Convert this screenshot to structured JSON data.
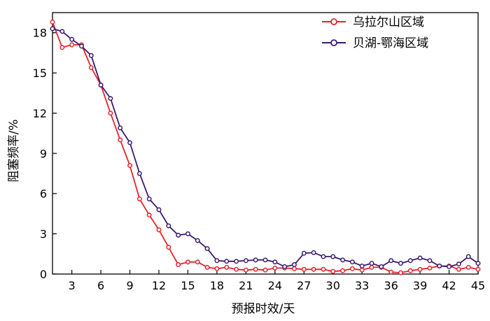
{
  "chart_data": {
    "type": "line",
    "xlabel": "预报时效/天",
    "ylabel": "阻塞频率/%",
    "xlim": [
      1,
      45
    ],
    "ylim": [
      0,
      19.5
    ],
    "xticks": [
      3,
      6,
      9,
      12,
      15,
      18,
      21,
      24,
      27,
      30,
      33,
      36,
      39,
      42,
      45
    ],
    "yticks": [
      0,
      3,
      6,
      9,
      12,
      15,
      18
    ],
    "legend_position": "top-right",
    "x": [
      1,
      2,
      3,
      4,
      5,
      6,
      7,
      8,
      9,
      10,
      11,
      12,
      13,
      14,
      15,
      16,
      17,
      18,
      19,
      20,
      21,
      22,
      23,
      24,
      25,
      26,
      27,
      28,
      29,
      30,
      31,
      32,
      33,
      34,
      35,
      36,
      37,
      38,
      39,
      40,
      41,
      42,
      43,
      44,
      45
    ],
    "series": [
      {
        "name": "乌拉尔山区域",
        "color": "#e8202a",
        "values": [
          18.8,
          16.9,
          17.1,
          17.1,
          15.4,
          14.1,
          12.0,
          10.0,
          8.1,
          5.6,
          4.4,
          3.3,
          2.0,
          0.7,
          0.9,
          0.9,
          0.5,
          0.4,
          0.5,
          0.35,
          0.3,
          0.35,
          0.3,
          0.45,
          0.45,
          0.4,
          0.35,
          0.35,
          0.35,
          0.2,
          0.25,
          0.4,
          0.3,
          0.5,
          0.5,
          0.15,
          0.1,
          0.25,
          0.35,
          0.45,
          0.6,
          0.6,
          0.35,
          0.5,
          0.35
        ]
      },
      {
        "name": "贝湖-鄂海区域",
        "color": "#3a1a6e",
        "values": [
          18.3,
          18.1,
          17.5,
          17.0,
          16.3,
          14.1,
          13.1,
          10.9,
          9.8,
          7.5,
          5.6,
          4.8,
          3.6,
          2.9,
          3.0,
          2.5,
          1.9,
          1.0,
          0.95,
          0.95,
          1.0,
          1.05,
          1.05,
          0.9,
          0.55,
          0.7,
          1.55,
          1.6,
          1.3,
          1.3,
          1.05,
          0.9,
          0.6,
          0.8,
          0.55,
          1.0,
          0.8,
          1.0,
          1.2,
          1.0,
          0.6,
          0.55,
          0.75,
          1.3,
          0.8
        ]
      }
    ]
  }
}
